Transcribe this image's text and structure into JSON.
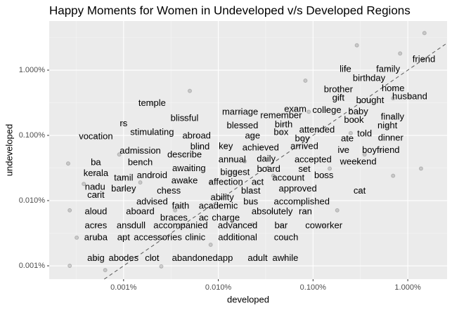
{
  "chart_data": {
    "type": "scatter",
    "title": "Happy Moments for Women in Undeveloped v/s Developed Regions",
    "x_label": "developed",
    "y_label": "undeveloped",
    "log_x": true,
    "log_y": true,
    "grid": true,
    "diagonal": true,
    "xlim": [
      0.000164,
      2.6
    ],
    "ylim": [
      0.000625,
      5.66
    ],
    "xticks": [
      {
        "value": 0.001,
        "label": "0.001%"
      },
      {
        "value": 0.01,
        "label": "0.010%"
      },
      {
        "value": 0.1,
        "label": "0.100%"
      },
      {
        "value": 1,
        "label": "1.000%"
      }
    ],
    "yticks": [
      {
        "value": 0.001,
        "label": "0.001%"
      },
      {
        "value": 0.01,
        "label": "0.010%"
      },
      {
        "value": 0.1,
        "label": "0.100%"
      },
      {
        "value": 1,
        "label": "1.000%"
      }
    ],
    "points": {
      "color": "#333333",
      "x": [
        1.5,
        0.29,
        0.83,
        0.083,
        0.005,
        0.09,
        0.00026,
        0.00038,
        0.00027,
        0.00032,
        0.00027,
        0.00064,
        0.0025,
        0.0083,
        0.023,
        0.0035,
        0.0083,
        0.038,
        0.15,
        0.35,
        0.7,
        1.38,
        0.18,
        0.25,
        0.7,
        0.019,
        0.0015,
        0.0009
      ],
      "y": [
        3.7,
        2.4,
        1.8,
        0.69,
        0.48,
        0.23,
        0.037,
        0.018,
        0.0071,
        0.0027,
        0.001,
        0.00086,
        0.00098,
        0.0021,
        0.0043,
        0.0071,
        0.019,
        0.024,
        0.031,
        0.051,
        0.024,
        0.031,
        0.0071,
        0.108,
        0.37,
        0.04,
        0.019,
        0.051
      ]
    },
    "labels": {
      "color": "#000000",
      "words": [
        "friend",
        "life",
        "family",
        "birthday",
        "home",
        "brother",
        "husband",
        "gift",
        "bought",
        "exam",
        "college",
        "baby",
        "temple",
        "marriage",
        "remember",
        "finally",
        "book",
        "blissful",
        "rs",
        "blessed",
        "birth",
        "night",
        "attended",
        "stimulating",
        "abroad",
        "age",
        "box",
        "told",
        "dinner",
        "vocation",
        "boy",
        "ate",
        "blind",
        "key",
        "achieved",
        "arrived",
        "ive",
        "boyfriend",
        "admission",
        "describe",
        "annual",
        "daily",
        "accepted",
        "weekend",
        "ba",
        "bench",
        "awaiting",
        "biggest",
        "board",
        "set",
        "kerala",
        "tamil",
        "android",
        "awake",
        "affection",
        "act",
        "account",
        "boss",
        "nadu",
        "barley",
        "chess",
        "blast",
        "approved",
        "cat",
        "carit",
        "advised",
        "ability",
        "bus",
        "accomplished",
        "faith",
        "academic",
        "aloud",
        "aboard",
        "absolutely",
        "ran",
        "braces",
        "ac",
        "charge",
        "acres",
        "ansdull",
        "accompanied",
        "advanced",
        "bar",
        "coworker",
        "aruba",
        "apt",
        "accessories",
        "clinic",
        "additional",
        "couch",
        "abig",
        "abodes",
        "clot",
        "abandonedapp",
        "adult",
        "awhile"
      ],
      "x": [
        1.48,
        0.22,
        0.62,
        0.39,
        0.7,
        0.185,
        1.05,
        0.185,
        0.4,
        0.065,
        0.14,
        0.3,
        0.002,
        0.017,
        0.046,
        0.69,
        0.27,
        0.0044,
        0.001,
        0.018,
        0.049,
        0.61,
        0.11,
        0.002,
        0.0059,
        0.023,
        0.046,
        0.35,
        0.66,
        0.00051,
        0.077,
        0.23,
        0.0064,
        0.012,
        0.028,
        0.081,
        0.21,
        0.52,
        0.0015,
        0.0044,
        0.014,
        0.032,
        0.1,
        0.3,
        0.00051,
        0.0015,
        0.0049,
        0.015,
        0.034,
        0.081,
        0.00051,
        0.001,
        0.002,
        0.0044,
        0.012,
        0.026,
        0.055,
        0.13,
        0.0005,
        0.001,
        0.003,
        0.022,
        0.069,
        0.31,
        0.00051,
        0.002,
        0.011,
        0.022,
        0.076,
        0.004,
        0.01,
        0.00051,
        0.0015,
        0.037,
        0.083,
        0.0034,
        0.007,
        0.012,
        0.00051,
        0.0012,
        0.004,
        0.016,
        0.046,
        0.13,
        0.00051,
        0.001,
        0.0023,
        0.0057,
        0.016,
        0.052,
        0.00051,
        0.001,
        0.002,
        0.0068,
        0.026,
        0.051
      ],
      "y": [
        1.45,
        1.03,
        1.03,
        0.74,
        0.52,
        0.5,
        0.39,
        0.37,
        0.34,
        0.25,
        0.24,
        0.23,
        0.31,
        0.226,
        0.2,
        0.19,
        0.17,
        0.18,
        0.15,
        0.14,
        0.145,
        0.14,
        0.12,
        0.11,
        0.097,
        0.097,
        0.11,
        0.105,
        0.091,
        0.095,
        0.088,
        0.088,
        0.066,
        0.067,
        0.064,
        0.067,
        0.059,
        0.059,
        0.057,
        0.05,
        0.042,
        0.043,
        0.042,
        0.039,
        0.038,
        0.038,
        0.031,
        0.027,
        0.03,
        0.03,
        0.026,
        0.022,
        0.024,
        0.02,
        0.019,
        0.019,
        0.022,
        0.024,
        0.016,
        0.015,
        0.014,
        0.014,
        0.015,
        0.014,
        0.012,
        0.0095,
        0.011,
        0.0095,
        0.0095,
        0.0082,
        0.0082,
        0.0067,
        0.0067,
        0.0067,
        0.0067,
        0.0054,
        0.0054,
        0.0054,
        0.0041,
        0.0041,
        0.0041,
        0.0041,
        0.0041,
        0.0041,
        0.0027,
        0.0027,
        0.0027,
        0.0027,
        0.0027,
        0.0027,
        0.0013,
        0.0013,
        0.0013,
        0.0013,
        0.0013,
        0.0013
      ]
    }
  }
}
